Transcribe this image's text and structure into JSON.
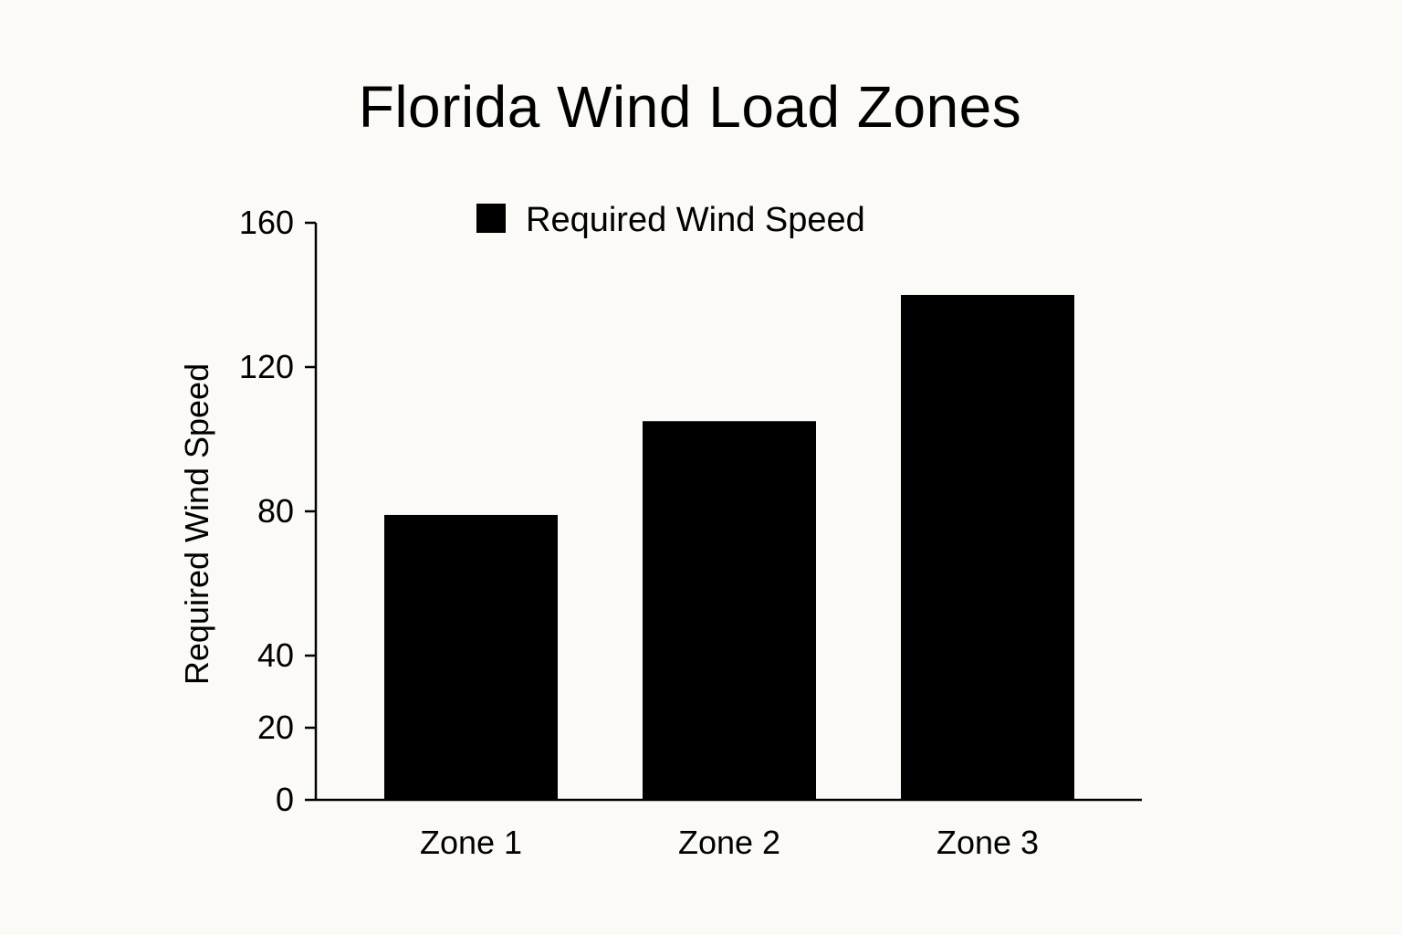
{
  "chart_data": {
    "type": "bar",
    "title": "Florida Wind Load Zones",
    "xlabel": "",
    "ylabel": "Required Wind Speed",
    "categories": [
      "Zone 1",
      "Zone 2",
      "Zone 3"
    ],
    "series": [
      {
        "name": "Required Wind Speed",
        "values": [
          79,
          105,
          140
        ],
        "color": "#000000"
      }
    ],
    "yticks": [
      0,
      20,
      40,
      80,
      120,
      160
    ],
    "ylim": [
      0,
      160
    ],
    "grid": false,
    "legend_position": "top-center"
  }
}
